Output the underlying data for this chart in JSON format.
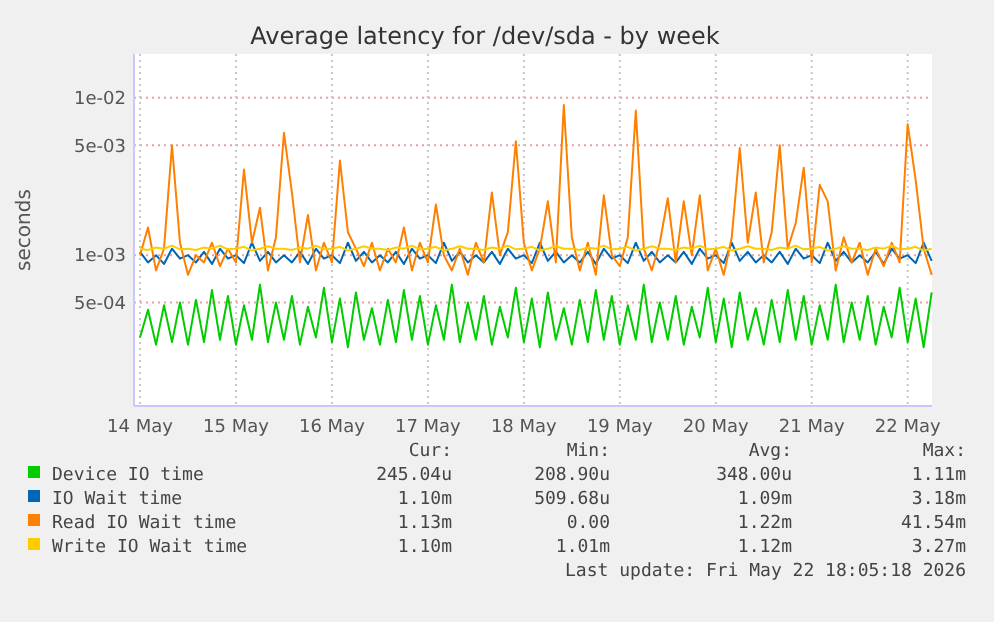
{
  "chart_data": {
    "type": "line",
    "title": "Average latency for /dev/sda - by week",
    "ylabel": "seconds",
    "log": true,
    "grid": true,
    "legend": "bottom",
    "line_style": "solid",
    "xlim": [
      "2026-05-14T10:30",
      "2026-05-22T18:05"
    ],
    "xticks": [
      {
        "value": "2026-05-14T12:00",
        "label": "14 May"
      },
      {
        "value": "2026-05-15T12:00",
        "label": "15 May"
      },
      {
        "value": "2026-05-16T12:00",
        "label": "16 May"
      },
      {
        "value": "2026-05-17T12:00",
        "label": "17 May"
      },
      {
        "value": "2026-05-18T12:00",
        "label": "18 May"
      },
      {
        "value": "2026-05-19T12:00",
        "label": "19 May"
      },
      {
        "value": "2026-05-20T12:00",
        "label": "20 May"
      },
      {
        "value": "2026-05-21T12:00",
        "label": "21 May"
      },
      {
        "value": "2026-05-22T12:00",
        "label": "22 May"
      }
    ],
    "ylim": [
      0.00011,
      0.019
    ],
    "yticks": [
      {
        "value": 0.0005,
        "label": "5e-04"
      },
      {
        "value": 0.001,
        "label": "1e-03"
      },
      {
        "value": 0.005,
        "label": "5e-03"
      },
      {
        "value": 0.01,
        "label": "1e-02"
      }
    ],
    "x": [
      "2026-05-14T12:00",
      "2026-05-14T14:00",
      "2026-05-14T16:00",
      "2026-05-14T18:00",
      "2026-05-14T20:00",
      "2026-05-14T22:00",
      "2026-05-15T00:00",
      "2026-05-15T02:00",
      "2026-05-15T04:00",
      "2026-05-15T06:00",
      "2026-05-15T08:00",
      "2026-05-15T10:00",
      "2026-05-15T12:00",
      "2026-05-15T14:00",
      "2026-05-15T16:00",
      "2026-05-15T18:00",
      "2026-05-15T20:00",
      "2026-05-15T22:00",
      "2026-05-16T00:00",
      "2026-05-16T02:00",
      "2026-05-16T04:00",
      "2026-05-16T06:00",
      "2026-05-16T08:00",
      "2026-05-16T10:00",
      "2026-05-16T12:00",
      "2026-05-16T14:00",
      "2026-05-16T16:00",
      "2026-05-16T18:00",
      "2026-05-16T20:00",
      "2026-05-16T22:00",
      "2026-05-17T00:00",
      "2026-05-17T02:00",
      "2026-05-17T04:00",
      "2026-05-17T06:00",
      "2026-05-17T08:00",
      "2026-05-17T10:00",
      "2026-05-17T12:00",
      "2026-05-17T14:00",
      "2026-05-17T16:00",
      "2026-05-17T18:00",
      "2026-05-17T20:00",
      "2026-05-17T22:00",
      "2026-05-18T00:00",
      "2026-05-18T02:00",
      "2026-05-18T04:00",
      "2026-05-18T06:00",
      "2026-05-18T08:00",
      "2026-05-18T10:00",
      "2026-05-18T12:00",
      "2026-05-18T14:00",
      "2026-05-18T16:00",
      "2026-05-18T18:00",
      "2026-05-18T20:00",
      "2026-05-18T22:00",
      "2026-05-19T00:00",
      "2026-05-19T02:00",
      "2026-05-19T04:00",
      "2026-05-19T06:00",
      "2026-05-19T08:00",
      "2026-05-19T10:00",
      "2026-05-19T12:00",
      "2026-05-19T14:00",
      "2026-05-19T16:00",
      "2026-05-19T18:00",
      "2026-05-19T20:00",
      "2026-05-19T22:00",
      "2026-05-20T00:00",
      "2026-05-20T02:00",
      "2026-05-20T04:00",
      "2026-05-20T06:00",
      "2026-05-20T08:00",
      "2026-05-20T10:00",
      "2026-05-20T12:00",
      "2026-05-20T14:00",
      "2026-05-20T16:00",
      "2026-05-20T18:00",
      "2026-05-20T20:00",
      "2026-05-20T22:00",
      "2026-05-21T00:00",
      "2026-05-21T02:00",
      "2026-05-21T04:00",
      "2026-05-21T06:00",
      "2026-05-21T08:00",
      "2026-05-21T10:00",
      "2026-05-21T12:00",
      "2026-05-21T14:00",
      "2026-05-21T16:00",
      "2026-05-21T18:00",
      "2026-05-21T20:00",
      "2026-05-21T22:00",
      "2026-05-22T00:00",
      "2026-05-22T02:00",
      "2026-05-22T04:00",
      "2026-05-22T06:00",
      "2026-05-22T08:00",
      "2026-05-22T10:00",
      "2026-05-22T12:00",
      "2026-05-22T14:00",
      "2026-05-22T16:00",
      "2026-05-22T18:00"
    ],
    "series": [
      {
        "name": "Device IO time",
        "color": "#00cc00",
        "values": [
          0.0003,
          0.00045,
          0.00027,
          0.00048,
          0.00028,
          0.0005,
          0.00027,
          0.00052,
          0.00028,
          0.0006,
          0.00029,
          0.00055,
          0.00027,
          0.00048,
          0.00029,
          0.00065,
          0.00028,
          0.0005,
          0.00029,
          0.00055,
          0.00027,
          0.00047,
          0.0003,
          0.00062,
          0.00028,
          0.00053,
          0.00026,
          0.00058,
          0.00029,
          0.00046,
          0.00027,
          0.00052,
          0.00028,
          0.0006,
          0.00029,
          0.00055,
          0.00027,
          0.00048,
          0.00029,
          0.00065,
          0.00028,
          0.0005,
          0.00029,
          0.00055,
          0.00027,
          0.00047,
          0.0003,
          0.00062,
          0.00028,
          0.00053,
          0.00026,
          0.00058,
          0.00029,
          0.00046,
          0.00027,
          0.00052,
          0.00028,
          0.0006,
          0.00029,
          0.00055,
          0.00027,
          0.00048,
          0.00029,
          0.00065,
          0.00028,
          0.0005,
          0.00029,
          0.00055,
          0.00027,
          0.00047,
          0.0003,
          0.00062,
          0.00028,
          0.00053,
          0.00026,
          0.00058,
          0.00029,
          0.00046,
          0.00027,
          0.00052,
          0.00028,
          0.0006,
          0.00029,
          0.00055,
          0.00027,
          0.00048,
          0.00029,
          0.00065,
          0.00028,
          0.0005,
          0.00029,
          0.00055,
          0.00027,
          0.00047,
          0.0003,
          0.00062,
          0.00028,
          0.00053,
          0.00026,
          0.00058
        ]
      },
      {
        "name": "IO Wait time",
        "color": "#0066b3",
        "values": [
          0.00105,
          0.0009,
          0.001,
          0.00088,
          0.0011,
          0.00095,
          0.001,
          0.0009,
          0.00105,
          0.00088,
          0.0011,
          0.00095,
          0.001,
          0.00089,
          0.0012,
          0.00092,
          0.00105,
          0.0009,
          0.001,
          0.0009,
          0.00105,
          0.00088,
          0.0011,
          0.00095,
          0.001,
          0.00089,
          0.0012,
          0.00092,
          0.00105,
          0.0009,
          0.001,
          0.0009,
          0.00105,
          0.00088,
          0.0011,
          0.00095,
          0.001,
          0.00089,
          0.0012,
          0.00092,
          0.00105,
          0.0009,
          0.001,
          0.0009,
          0.00105,
          0.00088,
          0.0011,
          0.00095,
          0.001,
          0.00089,
          0.0012,
          0.00092,
          0.00105,
          0.0009,
          0.001,
          0.0009,
          0.00105,
          0.00088,
          0.0011,
          0.00095,
          0.001,
          0.00089,
          0.0012,
          0.00092,
          0.00105,
          0.0009,
          0.001,
          0.0009,
          0.00105,
          0.00088,
          0.0011,
          0.00095,
          0.001,
          0.00089,
          0.0012,
          0.00092,
          0.00105,
          0.0009,
          0.001,
          0.0009,
          0.00105,
          0.00088,
          0.0011,
          0.00095,
          0.001,
          0.00089,
          0.0012,
          0.00092,
          0.00105,
          0.0009,
          0.001,
          0.0009,
          0.00105,
          0.00088,
          0.0011,
          0.00095,
          0.001,
          0.00089,
          0.0012,
          0.00092
        ]
      },
      {
        "name": "Read IO Wait time",
        "color": "#ff8000",
        "values": [
          0.001,
          0.0015,
          0.0008,
          0.0011,
          0.005,
          0.0012,
          0.00075,
          0.001,
          0.0009,
          0.0012,
          0.00085,
          0.0011,
          0.0009,
          0.0035,
          0.0012,
          0.002,
          0.0008,
          0.0013,
          0.006,
          0.0025,
          0.0009,
          0.0018,
          0.0008,
          0.0012,
          0.0009,
          0.004,
          0.0014,
          0.0011,
          0.00085,
          0.0012,
          0.0008,
          0.0011,
          0.0009,
          0.0015,
          0.0008,
          0.0012,
          0.0009,
          0.0021,
          0.001,
          0.0008,
          0.0011,
          0.00075,
          0.0012,
          0.0009,
          0.0025,
          0.001,
          0.0014,
          0.0053,
          0.0012,
          0.0008,
          0.0011,
          0.0022,
          0.0009,
          0.009,
          0.0013,
          0.0008,
          0.0012,
          0.00075,
          0.0024,
          0.001,
          0.00085,
          0.0013,
          0.0083,
          0.0011,
          0.0008,
          0.0012,
          0.0023,
          0.0009,
          0.0022,
          0.001,
          0.0024,
          0.0008,
          0.0011,
          0.00075,
          0.0013,
          0.0048,
          0.0012,
          0.0025,
          0.0009,
          0.0014,
          0.005,
          0.0011,
          0.0016,
          0.0036,
          0.0009,
          0.0028,
          0.0022,
          0.0008,
          0.0013,
          0.0009,
          0.0012,
          0.00075,
          0.0011,
          0.00085,
          0.0012,
          0.0009,
          0.0068,
          0.003,
          0.0011,
          0.00075
        ]
      },
      {
        "name": "Write IO Wait time",
        "color": "#ffcc00",
        "values": [
          0.0011,
          0.00108,
          0.00112,
          0.0011,
          0.00115,
          0.00109,
          0.0011,
          0.00108,
          0.00112,
          0.0011,
          0.00115,
          0.00109,
          0.0011,
          0.00113,
          0.00107,
          0.0011,
          0.00114,
          0.0011,
          0.0011,
          0.00108,
          0.00112,
          0.0011,
          0.00115,
          0.00109,
          0.0011,
          0.00113,
          0.00107,
          0.0011,
          0.00114,
          0.0011,
          0.0011,
          0.00108,
          0.00112,
          0.0011,
          0.00115,
          0.00109,
          0.0011,
          0.00113,
          0.00107,
          0.0011,
          0.00114,
          0.0011,
          0.0011,
          0.00108,
          0.00112,
          0.0011,
          0.00115,
          0.00109,
          0.0011,
          0.00113,
          0.00107,
          0.0011,
          0.00114,
          0.0011,
          0.0011,
          0.00108,
          0.00112,
          0.0011,
          0.00115,
          0.00109,
          0.0011,
          0.00113,
          0.00107,
          0.0011,
          0.00114,
          0.0011,
          0.0011,
          0.00108,
          0.00112,
          0.0011,
          0.00115,
          0.00109,
          0.0011,
          0.00113,
          0.00107,
          0.0011,
          0.00114,
          0.0011,
          0.0011,
          0.00108,
          0.00112,
          0.0011,
          0.00115,
          0.00109,
          0.0011,
          0.00113,
          0.00107,
          0.0011,
          0.00114,
          0.0011,
          0.0011,
          0.00108,
          0.00112,
          0.0011,
          0.00115,
          0.00109,
          0.0011,
          0.00113,
          0.00107,
          0.0011
        ]
      }
    ],
    "annotations": [
      "Cur:",
      "Min:",
      "Avg:",
      "Max:",
      "245.04u",
      "208.90u",
      "348.00u",
      "1.11m",
      "1.10m",
      "509.68u",
      "1.09m",
      "3.18m",
      "1.13m",
      "0.00",
      "1.22m",
      "41.54m",
      "1.10m",
      "1.01m",
      "1.12m",
      "3.27m",
      "Last update: Fri May 22 18:05:18 2026"
    ]
  }
}
